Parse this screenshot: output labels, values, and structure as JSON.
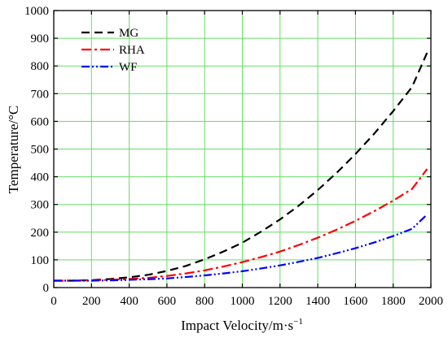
{
  "chart_data": {
    "type": "line",
    "title": "",
    "xlabel": "Impact Velocity/m·s",
    "xlabel_superscript": "−1",
    "ylabel": "Temperature/°C",
    "xlim": [
      0,
      2000
    ],
    "ylim": [
      0,
      1000
    ],
    "xticks": [
      0,
      200,
      400,
      600,
      800,
      1000,
      1200,
      1400,
      1600,
      1800,
      2000
    ],
    "yticks": [
      0,
      100,
      200,
      300,
      400,
      500,
      600,
      700,
      800,
      900,
      1000
    ],
    "grid": true,
    "grid_color": "#66dd66",
    "legend_position": "top-left",
    "series": [
      {
        "name": "MG",
        "color": "#000000",
        "dash": "dash",
        "x": [
          0,
          100,
          200,
          300,
          400,
          500,
          600,
          700,
          800,
          900,
          1000,
          1100,
          1200,
          1300,
          1400,
          1500,
          1600,
          1700,
          1800,
          1900,
          1980
        ],
        "y": [
          25,
          25,
          27,
          31,
          37,
          46,
          60,
          78,
          102,
          130,
          162,
          202,
          246,
          296,
          352,
          414,
          482,
          556,
          637,
          724,
          848
        ]
      },
      {
        "name": "RHA",
        "color": "#ff0000",
        "dash": "dashdot",
        "x": [
          0,
          100,
          200,
          300,
          400,
          500,
          600,
          700,
          800,
          900,
          1000,
          1100,
          1200,
          1300,
          1400,
          1500,
          1600,
          1700,
          1800,
          1900,
          1980
        ],
        "y": [
          25,
          25,
          26,
          28,
          31,
          35,
          42,
          51,
          62,
          76,
          92,
          110,
          130,
          154,
          180,
          209,
          241,
          276,
          314,
          356,
          428
        ]
      },
      {
        "name": "WF",
        "color": "#0000ff",
        "dash": "dashdotdot",
        "x": [
          0,
          100,
          200,
          300,
          400,
          500,
          600,
          700,
          800,
          900,
          1000,
          1100,
          1200,
          1300,
          1400,
          1500,
          1600,
          1700,
          1800,
          1900,
          1980
        ],
        "y": [
          25,
          25,
          25,
          26,
          28,
          30,
          33,
          38,
          44,
          51,
          59,
          69,
          80,
          93,
          107,
          124,
          142,
          163,
          186,
          212,
          264
        ]
      }
    ]
  }
}
